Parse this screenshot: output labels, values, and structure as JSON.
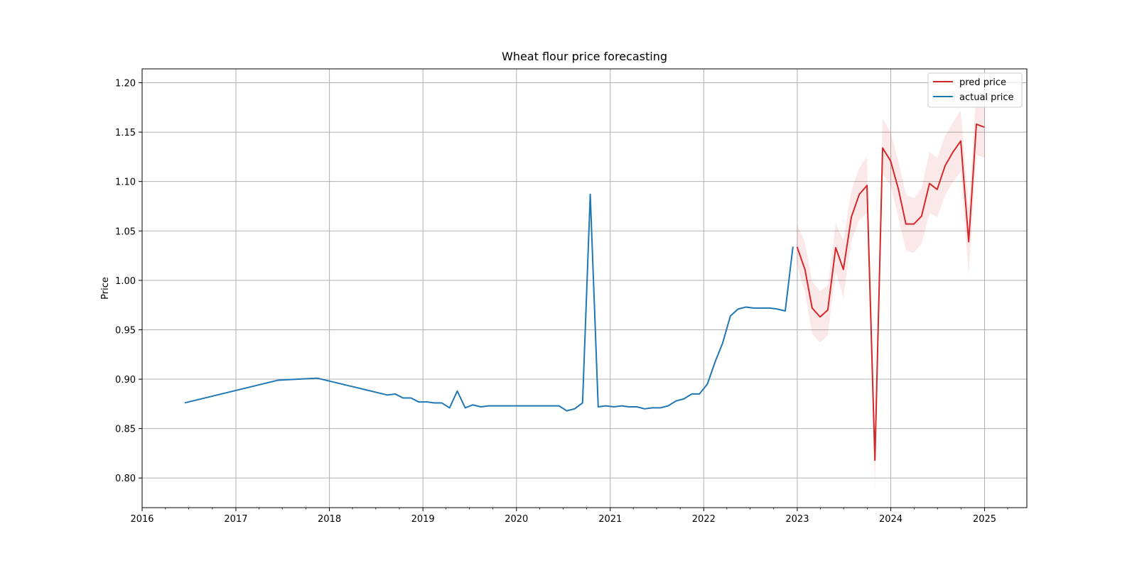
{
  "chart_data": {
    "type": "line",
    "title": "Wheat flour price forecasting",
    "xlabel": "",
    "ylabel": "Price",
    "xlim": [
      "2016-01-01",
      "2025-06-15"
    ],
    "ylim": [
      0.77,
      1.214
    ],
    "x_ticks": [
      "2016",
      "2017",
      "2018",
      "2019",
      "2020",
      "2021",
      "2022",
      "2023",
      "2024",
      "2025"
    ],
    "y_ticks": [
      "0.80",
      "0.85",
      "0.90",
      "0.95",
      "1.00",
      "1.05",
      "1.10",
      "1.15",
      "1.20"
    ],
    "grid": true,
    "legend_position": "upper right",
    "series": [
      {
        "name": "actual price",
        "color": "#1f77b4",
        "x": [
          "2016-06-15",
          "2017-06-15",
          "2017-11-15",
          "2018-08-15",
          "2018-09-15",
          "2018-10-15",
          "2018-11-15",
          "2018-12-15",
          "2019-01-15",
          "2019-02-15",
          "2019-03-15",
          "2019-04-15",
          "2019-05-15",
          "2019-06-15",
          "2019-07-15",
          "2019-08-15",
          "2019-09-15",
          "2019-10-15",
          "2019-11-15",
          "2019-12-15",
          "2020-01-15",
          "2020-02-15",
          "2020-03-15",
          "2020-04-15",
          "2020-05-15",
          "2020-06-15",
          "2020-07-15",
          "2020-08-15",
          "2020-09-15",
          "2020-10-15",
          "2020-11-15",
          "2020-12-15",
          "2021-01-15",
          "2021-02-15",
          "2021-03-15",
          "2021-04-15",
          "2021-05-15",
          "2021-06-15",
          "2021-07-15",
          "2021-08-15",
          "2021-09-15",
          "2021-10-15",
          "2021-11-15",
          "2021-12-15",
          "2022-01-15",
          "2022-02-15",
          "2022-03-15",
          "2022-04-15",
          "2022-05-15",
          "2022-06-15",
          "2022-07-15",
          "2022-08-15",
          "2022-09-15",
          "2022-10-15",
          "2022-11-15",
          "2022-12-15"
        ],
        "values": [
          0.876,
          0.899,
          0.901,
          0.884,
          0.885,
          0.881,
          0.881,
          0.877,
          0.877,
          0.876,
          0.876,
          0.871,
          0.888,
          0.871,
          0.874,
          0.872,
          0.873,
          0.873,
          0.873,
          0.873,
          0.873,
          0.873,
          0.873,
          0.873,
          0.873,
          0.873,
          0.868,
          0.87,
          0.876,
          1.087,
          0.872,
          0.873,
          0.872,
          0.873,
          0.872,
          0.872,
          0.87,
          0.871,
          0.871,
          0.873,
          0.878,
          0.88,
          0.885,
          0.885,
          0.895,
          0.918,
          0.936,
          0.964,
          0.971,
          0.973,
          0.972,
          0.972,
          0.972,
          0.971,
          0.969,
          1.034
        ]
      },
      {
        "name": "pred price",
        "color": "#d62728",
        "x": [
          "2022-12-31",
          "2023-01-31",
          "2023-02-28",
          "2023-03-31",
          "2023-04-30",
          "2023-05-31",
          "2023-06-30",
          "2023-07-31",
          "2023-08-31",
          "2023-09-30",
          "2023-10-31",
          "2023-11-30",
          "2023-12-31",
          "2024-01-31",
          "2024-02-29",
          "2024-03-31",
          "2024-04-30",
          "2024-05-31",
          "2024-06-30",
          "2024-07-31",
          "2024-08-31",
          "2024-09-30",
          "2024-10-31",
          "2024-11-30",
          "2024-12-31"
        ],
        "values": [
          1.034,
          1.011,
          0.972,
          0.963,
          0.97,
          1.033,
          1.011,
          1.064,
          1.087,
          1.096,
          0.818,
          1.134,
          1.121,
          1.092,
          1.057,
          1.057,
          1.065,
          1.098,
          1.092,
          1.116,
          1.13,
          1.141,
          1.039,
          1.158,
          1.155
        ],
        "lower": [
          1.016,
          0.988,
          0.946,
          0.937,
          0.944,
          1.009,
          0.982,
          1.04,
          1.061,
          1.068,
          0.79,
          1.108,
          1.096,
          1.063,
          1.03,
          1.028,
          1.037,
          1.068,
          1.064,
          1.086,
          1.1,
          1.11,
          1.005,
          1.127,
          1.124
        ],
        "upper": [
          1.057,
          1.038,
          0.999,
          0.989,
          0.995,
          1.058,
          1.04,
          1.091,
          1.114,
          1.125,
          0.845,
          1.164,
          1.15,
          1.12,
          1.087,
          1.083,
          1.093,
          1.13,
          1.124,
          1.146,
          1.16,
          1.172,
          1.073,
          1.19,
          1.188
        ]
      }
    ]
  }
}
